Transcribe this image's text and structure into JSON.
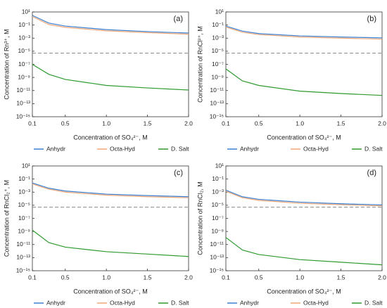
{
  "chart_data": [
    {
      "type": "line",
      "panel_label": "(a)",
      "xlabel": "Concentration of SO₄²⁻, M",
      "ylabel": "Concentration of Rn³⁺, M",
      "x": [
        0.1,
        0.3,
        0.5,
        1.0,
        1.5,
        2.0
      ],
      "series": [
        {
          "name": "Anhydr",
          "color": "#3b7fd0",
          "values": [
            3,
            0.2,
            0.07,
            0.02,
            0.01,
            0.006
          ]
        },
        {
          "name": "Octa-Hyd",
          "color": "#f0a878",
          "values": [
            2,
            0.12,
            0.045,
            0.013,
            0.007,
            0.004
          ]
        },
        {
          "name": "D. Salt",
          "color": "#2e9a2e",
          "values": [
            1e-07,
            3e-09,
            5e-10,
            6e-11,
            2.5e-11,
            1.2e-11
          ]
        }
      ],
      "hline": 5e-06,
      "log_y": true,
      "xlim": [
        0.1,
        2.0
      ],
      "xticks": [
        0.1,
        0.5,
        {
          "value": 1.0,
          "label": "1.0"
        },
        1.5,
        {
          "value": 2.0,
          "label": "2.0"
        }
      ],
      "ylim": [
        1e-15,
        10
      ],
      "yticks": [
        {
          "value": 10,
          "label": "10¹"
        },
        {
          "value": 0.1,
          "label": "10⁻¹"
        },
        {
          "value": 0.001,
          "label": "10⁻³"
        },
        {
          "value": 1e-05,
          "label": "10⁻⁵"
        },
        {
          "value": 1e-07,
          "label": "10⁻⁷"
        },
        {
          "value": 1e-09,
          "label": "10⁻⁹"
        },
        {
          "value": 1e-11,
          "label": "10⁻¹¹"
        },
        {
          "value": 1e-13,
          "label": "10⁻¹³"
        },
        {
          "value": 1e-15,
          "label": "10⁻¹⁵"
        }
      ]
    },
    {
      "type": "line",
      "panel_label": "(b)",
      "xlabel": "Concentration of SO₄²⁻, M",
      "ylabel": "Concentration of RnCl²⁺, M",
      "x": [
        0.1,
        0.3,
        0.5,
        1.0,
        1.5,
        2.0
      ],
      "series": [
        {
          "name": "Anhydr",
          "color": "#3b7fd0",
          "values": [
            0.07,
            0.012,
            0.005,
            0.0022,
            0.0015,
            0.0011
          ]
        },
        {
          "name": "Octa-Hyd",
          "color": "#f0a878",
          "values": [
            0.05,
            0.008,
            0.0035,
            0.0015,
            0.001,
            0.0007
          ]
        },
        {
          "name": "D. Salt",
          "color": "#2e9a2e",
          "values": [
            2e-08,
            3e-10,
            6e-11,
            8e-12,
            3.5e-12,
            1.8e-12
          ]
        }
      ],
      "hline": 5e-06,
      "log_y": true,
      "xlim": [
        0.1,
        2.0
      ],
      "xticks": [
        0.1,
        0.5,
        {
          "value": 1.0,
          "label": "1.0"
        },
        1.5,
        {
          "value": 2.0,
          "label": "2.0"
        }
      ],
      "ylim": [
        1e-15,
        10
      ],
      "yticks": [
        {
          "value": 10,
          "label": "10¹"
        },
        {
          "value": 0.1,
          "label": "10⁻¹"
        },
        {
          "value": 0.001,
          "label": "10⁻³"
        },
        {
          "value": 1e-05,
          "label": "10⁻⁵"
        },
        {
          "value": 1e-07,
          "label": "10⁻⁷"
        },
        {
          "value": 1e-09,
          "label": "10⁻⁹"
        },
        {
          "value": 1e-11,
          "label": "10⁻¹¹"
        },
        {
          "value": 1e-13,
          "label": "10⁻¹³"
        },
        {
          "value": 1e-15,
          "label": "10⁻¹⁵"
        }
      ]
    },
    {
      "type": "line",
      "panel_label": "(c)",
      "xlabel": "Concentration of SO₄²⁻, M",
      "ylabel": "Concentration of RnCl₂⁺, M",
      "x": [
        0.1,
        0.3,
        0.5,
        1.0,
        1.5,
        2.0
      ],
      "series": [
        {
          "name": "Anhydr",
          "color": "#3b7fd0",
          "values": [
            0.025,
            0.004,
            0.0015,
            0.0005,
            0.0003,
            0.0002
          ]
        },
        {
          "name": "Octa-Hyd",
          "color": "#f0a878",
          "values": [
            0.018,
            0.0028,
            0.001,
            0.00035,
            0.0002,
            0.00014
          ]
        },
        {
          "name": "D. Salt",
          "color": "#2e9a2e",
          "values": [
            1.6e-09,
            2e-11,
            4e-12,
            8e-13,
            3.5e-13,
            1.5e-13
          ]
        }
      ],
      "hline": 5e-06,
      "log_y": true,
      "xlim": [
        0.1,
        2.0
      ],
      "xticks": [
        0.1,
        0.5,
        {
          "value": 1.0,
          "label": "1.0"
        },
        1.5,
        {
          "value": 2.0,
          "label": "2.0"
        }
      ],
      "ylim": [
        1e-15,
        10
      ],
      "yticks": [
        {
          "value": 10,
          "label": "10¹"
        },
        {
          "value": 0.1,
          "label": "10⁻¹"
        },
        {
          "value": 0.001,
          "label": "10⁻³"
        },
        {
          "value": 1e-05,
          "label": "10⁻⁵"
        },
        {
          "value": 1e-07,
          "label": "10⁻⁷"
        },
        {
          "value": 1e-09,
          "label": "10⁻⁹"
        },
        {
          "value": 1e-11,
          "label": "10⁻¹¹"
        },
        {
          "value": 1e-13,
          "label": "10⁻¹³"
        },
        {
          "value": 1e-15,
          "label": "10⁻¹⁵"
        }
      ]
    },
    {
      "type": "line",
      "panel_label": "(d)",
      "xlabel": "Concentration of SO₄²⁻, M",
      "ylabel": "Concentration of RnCl₂, M",
      "x": [
        0.1,
        0.3,
        0.5,
        1.0,
        1.5,
        2.0
      ],
      "series": [
        {
          "name": "Anhydr",
          "color": "#3b7fd0",
          "values": [
            0.002,
            0.0002,
            8e-05,
            3e-05,
            1.7e-05,
            1.1e-05
          ]
        },
        {
          "name": "Octa-Hyd",
          "color": "#f0a878",
          "values": [
            0.0014,
            0.00014,
            5.5e-05,
            2e-05,
            1.2e-05,
            8e-06
          ]
        },
        {
          "name": "D. Salt",
          "color": "#2e9a2e",
          "values": [
            1.2e-10,
            1.5e-12,
            3e-13,
            5e-14,
            2e-14,
            8e-15
          ]
        }
      ],
      "hline": 5e-06,
      "log_y": true,
      "xlim": [
        0.1,
        2.0
      ],
      "xticks": [
        0.1,
        0.5,
        {
          "value": 1.0,
          "label": "1.0"
        },
        1.5,
        {
          "value": 2.0,
          "label": "2.0"
        }
      ],
      "ylim": [
        1e-15,
        10
      ],
      "yticks": [
        {
          "value": 10,
          "label": "10¹"
        },
        {
          "value": 0.1,
          "label": "10⁻¹"
        },
        {
          "value": 0.001,
          "label": "10⁻³"
        },
        {
          "value": 1e-05,
          "label": "10⁻⁵"
        },
        {
          "value": 1e-07,
          "label": "10⁻⁷"
        },
        {
          "value": 1e-09,
          "label": "10⁻⁹"
        },
        {
          "value": 1e-11,
          "label": "10⁻¹¹"
        },
        {
          "value": 1e-13,
          "label": "10⁻¹³"
        },
        {
          "value": 1e-15,
          "label": "10⁻¹⁵"
        }
      ]
    }
  ]
}
